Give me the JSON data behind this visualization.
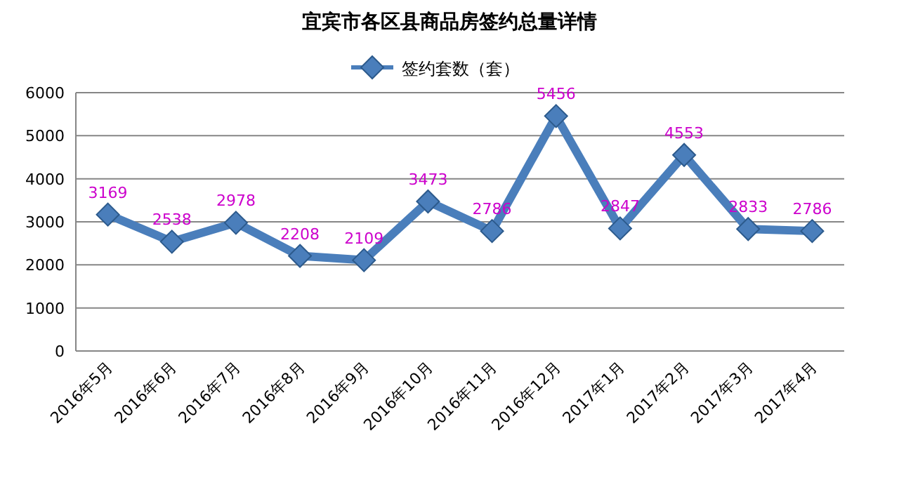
{
  "chart_data": {
    "type": "line",
    "title": "宜宾市各区县商品房签约总量详情",
    "categories": [
      "2016年5月",
      "2016年6月",
      "2016年7月",
      "2016年8月",
      "2016年9月",
      "2016年10月",
      "2016年11月",
      "2016年12月",
      "2017年1月",
      "2017年2月",
      "2017年3月",
      "2017年4月"
    ],
    "series": [
      {
        "name": "签约套数（套）",
        "color": "#4a7ebb",
        "values": [
          3169,
          2538,
          2978,
          2208,
          2109,
          3473,
          2786,
          5456,
          2847,
          4553,
          2833,
          2786
        ]
      }
    ],
    "ylim": [
      0,
      6000
    ],
    "yticks": [
      0,
      1000,
      2000,
      3000,
      4000,
      5000,
      6000
    ],
    "grid": "y",
    "legend": "top",
    "marker": "diamond",
    "line_style": "solid",
    "data_labels": true
  }
}
